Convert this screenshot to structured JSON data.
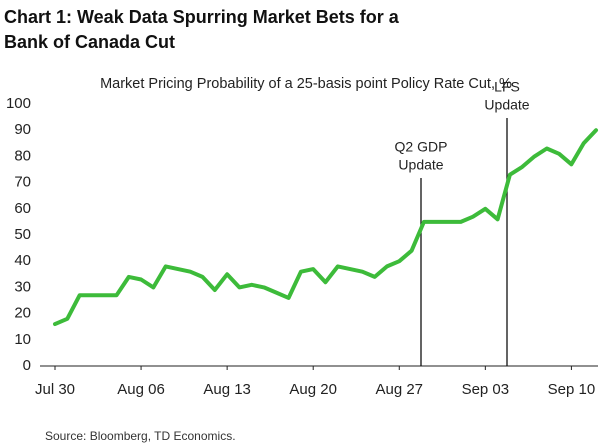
{
  "chart_data": {
    "type": "line",
    "title": [
      "Chart 1: Weak Data Spurring Market Bets for a",
      "Bank of Canada Cut"
    ],
    "subtitle": "Market Pricing Probability of a 25-basis point Policy Rate Cut, %",
    "source": "Source: Bloomberg, TD Economics.",
    "categories": [
      "Jul 30",
      null,
      null,
      null,
      null,
      null,
      null,
      "Aug 06",
      null,
      null,
      null,
      null,
      null,
      null,
      "Aug 13",
      null,
      null,
      null,
      null,
      null,
      null,
      "Aug 20",
      null,
      null,
      null,
      null,
      null,
      null,
      "Aug 27",
      null,
      null,
      null,
      null,
      null,
      null,
      "Sep 03",
      null,
      null,
      null,
      null,
      null,
      null,
      "Sep 10",
      null,
      null
    ],
    "values": [
      16,
      18,
      27,
      27,
      27,
      27,
      34,
      33,
      30,
      38,
      37,
      36,
      34,
      29,
      35,
      30,
      31,
      30,
      28,
      26,
      36,
      37,
      32,
      38,
      37,
      36,
      34,
      38,
      40,
      44,
      55,
      55,
      55,
      55,
      57,
      60,
      56,
      73,
      76,
      80,
      83,
      81,
      77,
      85,
      90
    ],
    "color": "#3dbb3a",
    "ylim": [
      0,
      100
    ],
    "yticks": [
      0,
      10,
      20,
      30,
      40,
      50,
      60,
      70,
      80,
      90,
      100
    ],
    "grid": false,
    "annotations": [
      [
        "Q2 GDP",
        "Update"
      ],
      [
        "LFS",
        "Update"
      ]
    ]
  }
}
